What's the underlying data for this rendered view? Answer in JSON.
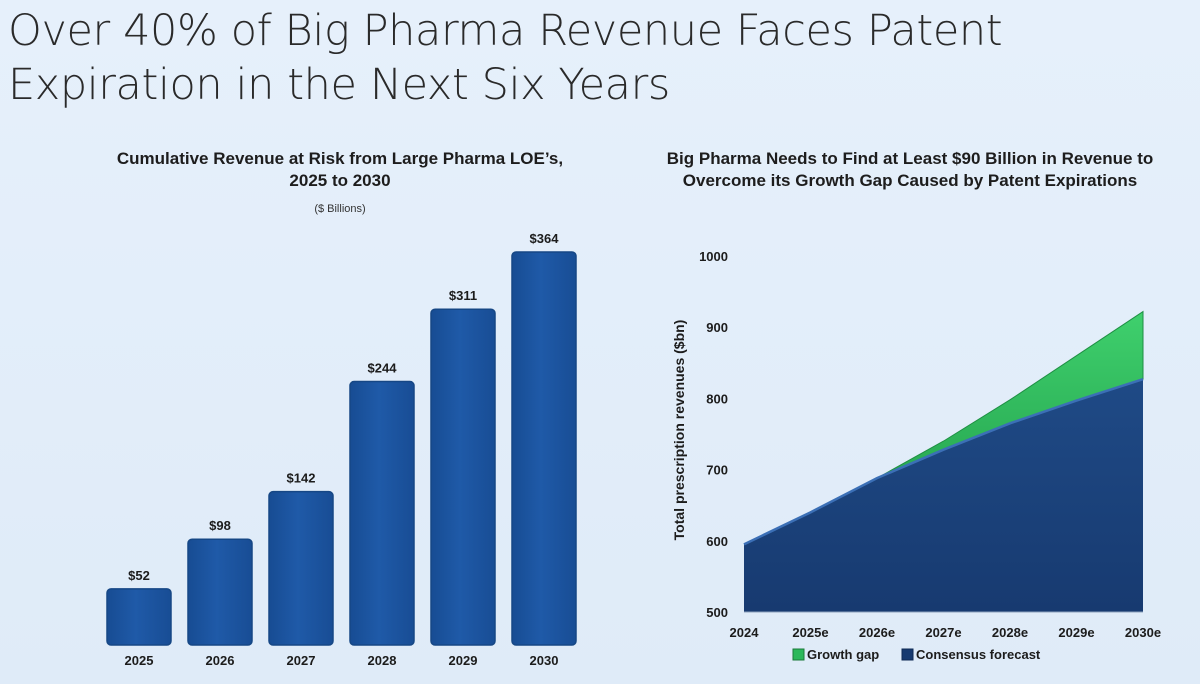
{
  "title": "Over 40% of Big Pharma Revenue Faces Patent Expiration in the Next Six Years",
  "colors": {
    "bar": "#1f5aa8",
    "bar_edge": "#164785",
    "consensus": "#173a70",
    "growth": "#2bb85a"
  },
  "chart_data": [
    {
      "type": "bar",
      "title": "Cumulative Revenue at Risk from Large Pharma LOE’s, 2025 to 2030",
      "subtitle": "($ Billions)",
      "categories": [
        "2025",
        "2026",
        "2027",
        "2028",
        "2029",
        "2030"
      ],
      "values": [
        52,
        98,
        142,
        244,
        311,
        364
      ],
      "data_labels": [
        "$52",
        "$98",
        "$142",
        "$244",
        "$311",
        "$364"
      ],
      "ylim": [
        0,
        364
      ],
      "grid": false
    },
    {
      "type": "area",
      "title": "Big Pharma Needs to Find at Least $90 Billion in Revenue to Overcome its Growth Gap Caused by Patent Expirations",
      "ylabel": "Total prescription revenues ($bn)",
      "x": [
        "2024",
        "2025e",
        "2026e",
        "2027e",
        "2028e",
        "2029e",
        "2030e"
      ],
      "ylim": [
        500,
        1000
      ],
      "yticks": [
        500,
        600,
        700,
        800,
        900,
        1000
      ],
      "grid": false,
      "legend_position": "bottom",
      "series": [
        {
          "name": "Growth gap",
          "stacked_total": [
            595,
            640,
            688,
            740,
            798,
            860,
            922
          ]
        },
        {
          "name": "Consensus forecast",
          "values": [
            595,
            640,
            688,
            728,
            765,
            797,
            827
          ]
        }
      ]
    }
  ]
}
